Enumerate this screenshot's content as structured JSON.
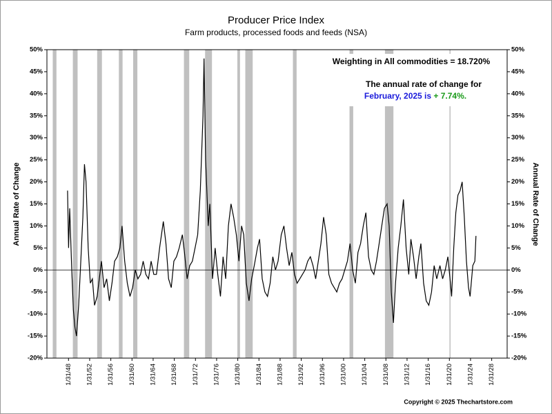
{
  "chart_data": {
    "type": "line",
    "title": "Producer Price Index",
    "subtitle": "Farm products, processed foods and feeds (NSA)",
    "y_label": "Annual Rate of Change",
    "y2_label": "Annual Rate of Change",
    "annotations": [
      "Weighting in All commodities = 18.720%",
      "The annual rate of change for",
      "February, 2025 is ",
      "+ 7.74%."
    ],
    "copyright": "Copyright © 2025 Thechartstore.com",
    "xlim": [
      1944,
      2031
    ],
    "xticks": [
      {
        "value": 1948.08,
        "label": "1/31/48"
      },
      {
        "value": 1952.08,
        "label": "1/31/52"
      },
      {
        "value": 1956.08,
        "label": "1/31/56"
      },
      {
        "value": 1960.08,
        "label": "1/31/60"
      },
      {
        "value": 1964.08,
        "label": "1/31/64"
      },
      {
        "value": 1968.08,
        "label": "1/31/68"
      },
      {
        "value": 1972.08,
        "label": "1/31/72"
      },
      {
        "value": 1976.08,
        "label": "1/31/76"
      },
      {
        "value": 1980.08,
        "label": "1/31/80"
      },
      {
        "value": 1984.08,
        "label": "1/31/84"
      },
      {
        "value": 1988.08,
        "label": "1/31/88"
      },
      {
        "value": 1992.08,
        "label": "1/31/92"
      },
      {
        "value": 1996.08,
        "label": "1/31/96"
      },
      {
        "value": 2000.08,
        "label": "1/31/00"
      },
      {
        "value": 2004.08,
        "label": "1/31/04"
      },
      {
        "value": 2008.08,
        "label": "1/31/08"
      },
      {
        "value": 2012.08,
        "label": "1/31/12"
      },
      {
        "value": 2016.08,
        "label": "1/31/16"
      },
      {
        "value": 2020.08,
        "label": "1/31/20"
      },
      {
        "value": 2024.08,
        "label": "1/31/24"
      },
      {
        "value": 2028.08,
        "label": "1/31/28"
      }
    ],
    "ylim": [
      -20,
      50
    ],
    "yticks": [
      {
        "value": -20,
        "label": "-20%"
      },
      {
        "value": -15,
        "label": "-15%"
      },
      {
        "value": -10,
        "label": "-10%"
      },
      {
        "value": -5,
        "label": "-5%"
      },
      {
        "value": 0,
        "label": "0%"
      },
      {
        "value": 5,
        "label": "5%"
      },
      {
        "value": 10,
        "label": "10%"
      },
      {
        "value": 15,
        "label": "15%"
      },
      {
        "value": 20,
        "label": "20%"
      },
      {
        "value": 25,
        "label": "25%"
      },
      {
        "value": 30,
        "label": "30%"
      },
      {
        "value": 35,
        "label": "35%"
      },
      {
        "value": 40,
        "label": "40%"
      },
      {
        "value": 45,
        "label": "45%"
      },
      {
        "value": 50,
        "label": "50%"
      }
    ],
    "y2lim": [
      -20,
      50
    ],
    "y2ticks": [
      {
        "value": -20,
        "label": "-20%"
      },
      {
        "value": -15,
        "label": "-15%"
      },
      {
        "value": -10,
        "label": "-10%"
      },
      {
        "value": -5,
        "label": "-5%"
      },
      {
        "value": 0,
        "label": "0%"
      },
      {
        "value": 5,
        "label": "5%"
      },
      {
        "value": 10,
        "label": "10%"
      },
      {
        "value": 15,
        "label": "15%"
      },
      {
        "value": 20,
        "label": "20%"
      },
      {
        "value": 25,
        "label": "25%"
      },
      {
        "value": 30,
        "label": "30%"
      },
      {
        "value": 35,
        "label": "35%"
      },
      {
        "value": 40,
        "label": "40%"
      },
      {
        "value": 45,
        "label": "45%"
      },
      {
        "value": 50,
        "label": "50%"
      }
    ],
    "zero_line": 0,
    "recession_color": "#c0c0c0",
    "recessions": [
      [
        1945.1,
        1945.8
      ],
      [
        1948.9,
        1949.8
      ],
      [
        1953.5,
        1954.4
      ],
      [
        1957.6,
        1958.3
      ],
      [
        1960.3,
        1961.1
      ],
      [
        1969.9,
        1970.9
      ],
      [
        1973.9,
        1975.2
      ],
      [
        1980.0,
        1980.5
      ],
      [
        1981.5,
        1982.9
      ],
      [
        1990.5,
        1991.2
      ],
      [
        2001.2,
        2001.9
      ],
      [
        2007.9,
        2009.5
      ],
      [
        2020.1,
        2020.3
      ]
    ],
    "series": [
      {
        "color": "#000000",
        "x": [
          1947.9,
          1948.1,
          1948.3,
          1948.7,
          1949.0,
          1949.3,
          1949.6,
          1950.0,
          1950.4,
          1950.8,
          1951.1,
          1951.4,
          1951.8,
          1952.2,
          1952.6,
          1953.0,
          1953.5,
          1954.0,
          1954.3,
          1954.8,
          1955.3,
          1955.8,
          1956.3,
          1956.8,
          1957.3,
          1957.8,
          1958.2,
          1958.7,
          1959.2,
          1959.7,
          1960.2,
          1960.7,
          1961.2,
          1961.7,
          1962.2,
          1962.7,
          1963.2,
          1963.7,
          1964.2,
          1964.7,
          1965.3,
          1966.0,
          1966.5,
          1967.0,
          1967.5,
          1968.0,
          1968.5,
          1969.0,
          1969.6,
          1970.0,
          1970.5,
          1971.0,
          1971.5,
          1972.0,
          1972.5,
          1973.0,
          1973.5,
          1973.7,
          1974.0,
          1974.5,
          1974.8,
          1975.3,
          1975.8,
          1976.3,
          1976.8,
          1977.3,
          1977.8,
          1978.3,
          1978.8,
          1979.3,
          1979.8,
          1980.3,
          1980.8,
          1981.2,
          1981.7,
          1982.2,
          1982.7,
          1983.2,
          1983.8,
          1984.2,
          1984.7,
          1985.2,
          1985.7,
          1986.2,
          1986.7,
          1987.2,
          1987.7,
          1988.3,
          1988.8,
          1989.3,
          1989.8,
          1990.3,
          1990.8,
          1991.3,
          1991.8,
          1992.3,
          1992.8,
          1993.3,
          1993.8,
          1994.3,
          1994.8,
          1995.3,
          1995.8,
          1996.3,
          1996.8,
          1997.3,
          1997.8,
          1998.3,
          1998.8,
          1999.3,
          1999.8,
          2000.3,
          2000.8,
          2001.3,
          2001.8,
          2002.3,
          2002.8,
          2003.3,
          2003.8,
          2004.3,
          2004.8,
          2005.3,
          2005.8,
          2006.3,
          2006.8,
          2007.3,
          2007.8,
          2008.3,
          2008.7,
          2009.1,
          2009.5,
          2009.9,
          2010.4,
          2010.9,
          2011.4,
          2011.9,
          2012.4,
          2012.8,
          2013.3,
          2013.8,
          2014.3,
          2014.7,
          2015.2,
          2015.7,
          2016.2,
          2016.7,
          2017.2,
          2017.7,
          2018.3,
          2018.8,
          2019.3,
          2019.8,
          2020.2,
          2020.5,
          2020.9,
          2021.3,
          2021.7,
          2022.1,
          2022.5,
          2022.9,
          2023.3,
          2023.7,
          2024.0,
          2024.5,
          2024.9,
          2025.1
        ],
        "values": [
          18,
          5,
          14,
          0,
          -9,
          -13,
          -15,
          -8,
          2,
          12,
          24,
          20,
          5,
          -3,
          -2,
          -8,
          -6,
          -1,
          2,
          -4,
          -2,
          -7,
          -3,
          2,
          3,
          5,
          10,
          2,
          -3,
          -6,
          -4,
          0,
          -2,
          -1,
          2,
          -1,
          -2,
          2,
          -1,
          -1,
          5,
          11,
          6,
          -2,
          -4,
          2,
          3,
          5,
          8,
          4,
          -2,
          1,
          2,
          5,
          8,
          18,
          35,
          48,
          25,
          10,
          15,
          -2,
          5,
          -1,
          -6,
          3,
          -2,
          10,
          15,
          12,
          8,
          2,
          10,
          8,
          -3,
          -7,
          -2,
          1,
          5,
          7,
          -2,
          -5,
          -6,
          -3,
          3,
          0,
          2,
          8,
          10,
          5,
          1,
          4,
          -1,
          -3,
          -2,
          -1,
          0,
          2,
          3,
          1,
          -2,
          2,
          6,
          12,
          8,
          -1,
          -3,
          -4,
          -5,
          -3,
          -2,
          0,
          2,
          6,
          0,
          -3,
          4,
          6,
          10,
          13,
          3,
          0,
          -1,
          2,
          6,
          10,
          14,
          15,
          10,
          -5,
          -12,
          -3,
          5,
          10,
          16,
          5,
          -1,
          7,
          3,
          -2,
          3,
          6,
          -3,
          -7,
          -8,
          -5,
          1,
          -2,
          1,
          -2,
          0,
          3,
          -2,
          -6,
          5,
          13,
          17,
          18,
          20,
          12,
          2,
          -4,
          -6,
          1,
          2,
          7.74
        ]
      }
    ]
  }
}
